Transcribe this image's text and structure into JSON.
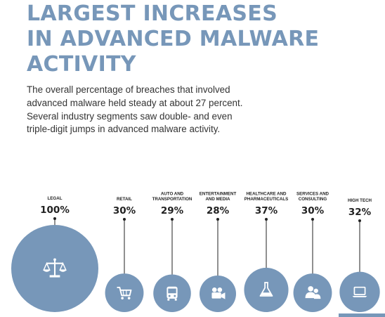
{
  "header": {
    "title_lines": [
      "LARGEST INCREASES",
      "IN ADVANCED MALWARE",
      "ACTIVITY"
    ],
    "subtitle_lines": [
      "The overall percentage of breaches that involved",
      "advanced malware held steady at about 27 percent.",
      "Several industry segments saw double- and even",
      "triple-digit jumps in advanced malware activity."
    ]
  },
  "colors": {
    "accent": "#7797b9",
    "circle": "#7797b9",
    "text": "#222222"
  },
  "chart_data": {
    "type": "bubble",
    "title": "LARGEST INCREASES IN ADVANCED MALWARE ACTIVITY",
    "categories": [
      {
        "label_lines": [
          "LEGAL"
        ],
        "value": 100,
        "value_label": "100%",
        "icon": "scales-icon"
      },
      {
        "label_lines": [
          "RETAIL"
        ],
        "value": 30,
        "value_label": "30%",
        "icon": "shopping-cart-icon"
      },
      {
        "label_lines": [
          "AUTO AND",
          "TRANSPORTATION"
        ],
        "value": 29,
        "value_label": "29%",
        "icon": "bus-icon"
      },
      {
        "label_lines": [
          "ENTERTAINMENT",
          "AND MEDIA"
        ],
        "value": 28,
        "value_label": "28%",
        "icon": "movie-camera-icon"
      },
      {
        "label_lines": [
          "HEALTHCARE AND",
          "PHARMACEUTICALS"
        ],
        "value": 37,
        "value_label": "37%",
        "icon": "flask-icon"
      },
      {
        "label_lines": [
          "SERVICES AND",
          "CONSULTING"
        ],
        "value": 30,
        "value_label": "30%",
        "icon": "people-icon"
      },
      {
        "label_lines": [
          "HIGH TECH"
        ],
        "value": 32,
        "value_label": "32%",
        "icon": "laptop-icon"
      }
    ],
    "unit": "%"
  }
}
